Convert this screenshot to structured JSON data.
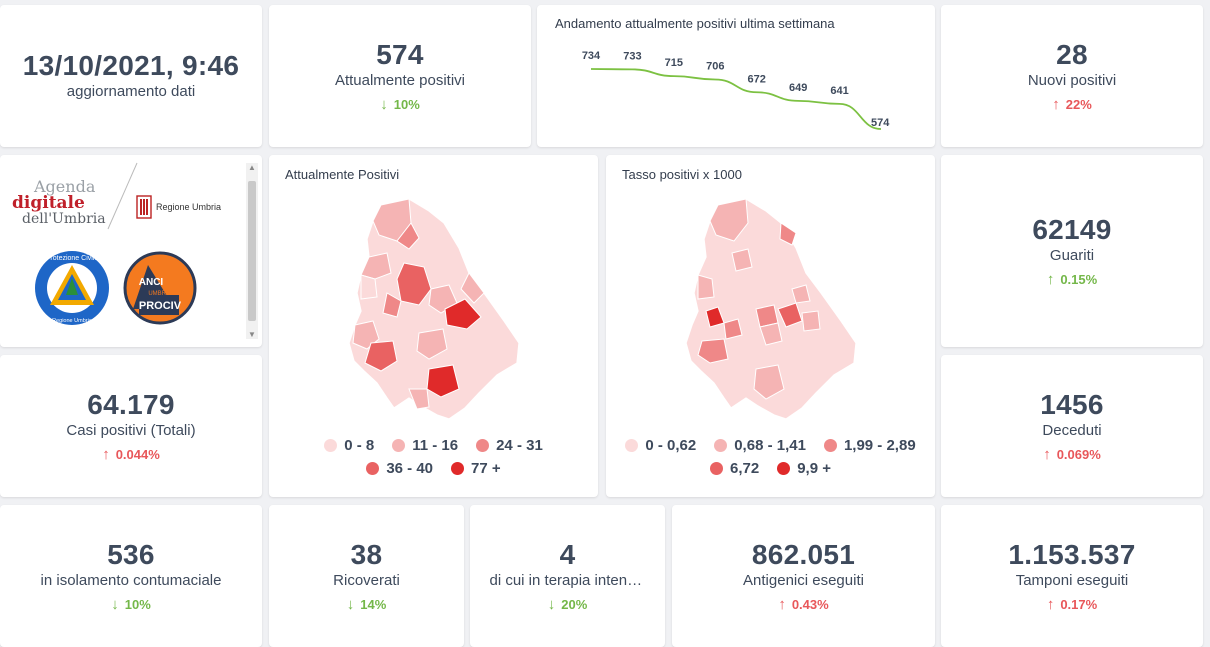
{
  "update": {
    "datetime": "13/10/2021, 9:46",
    "label": "aggiornamento dati"
  },
  "attualmente_positivi": {
    "value": "574",
    "label": "Attualmente positivi",
    "change": "10%",
    "direction": "down"
  },
  "trend": {
    "title": "Andamento attualmente positivi ultima settimana",
    "chart_data": {
      "type": "line",
      "x": [
        1,
        2,
        3,
        4,
        5,
        6,
        7,
        8
      ],
      "series": [
        {
          "values": [
            734,
            733,
            715,
            706,
            672,
            649,
            641,
            574
          ]
        }
      ],
      "data_labels": [
        "734",
        "733",
        "715",
        "706",
        "672",
        "649",
        "641",
        "574"
      ],
      "line_color": "#7cc142",
      "grid": false
    }
  },
  "nuovi_positivi": {
    "value": "28",
    "label": "Nuovi positivi",
    "change": "22%",
    "direction": "up"
  },
  "logos": {
    "agenda": [
      "Agenda",
      "digitale",
      "dell'Umbria"
    ],
    "regione": "Regione Umbria",
    "protezione": "Protezione Civile",
    "protezione_sub": "Regione Umbria",
    "anci": [
      "ANCI",
      "UMBRIA",
      "PROCIV"
    ]
  },
  "map_positivi": {
    "title": "Attualmente Positivi",
    "legend": [
      {
        "label": "0 - 8",
        "color": "#fbdada"
      },
      {
        "label": "11 - 16",
        "color": "#f5b4b4"
      },
      {
        "label": "24 - 31",
        "color": "#ef8888"
      },
      {
        "label": "36 - 40",
        "color": "#e96262"
      },
      {
        "label": "77 +",
        "color": "#e02a2a"
      }
    ]
  },
  "map_tasso": {
    "title": "Tasso positivi x 1000",
    "legend": [
      {
        "label": "0 - 0,62",
        "color": "#fbdada"
      },
      {
        "label": "0,68 - 1,41",
        "color": "#f5b4b4"
      },
      {
        "label": "1,99 - 2,89",
        "color": "#ef8888"
      },
      {
        "label": "6,72",
        "color": "#e96262"
      },
      {
        "label": "9,9 +",
        "color": "#e02a2a"
      }
    ]
  },
  "guariti": {
    "value": "62149",
    "label": "Guariti",
    "change": "0.15%",
    "direction": "up"
  },
  "casi_totali": {
    "value": "64.179",
    "label": "Casi positivi (Totali)",
    "change": "0.044%",
    "direction": "up"
  },
  "deceduti": {
    "value": "1456",
    "label": "Deceduti",
    "change": "0.069%",
    "direction": "up"
  },
  "isolamento": {
    "value": "536",
    "label": "in isolamento contumaciale",
    "change": "10%",
    "direction": "down"
  },
  "ricoverati": {
    "value": "38",
    "label": "Ricoverati",
    "change": "14%",
    "direction": "down"
  },
  "terapia": {
    "value": "4",
    "label": "di cui in terapia intensiva",
    "change": "20%",
    "direction": "down"
  },
  "antigenici": {
    "value": "862.051",
    "label": "Antigenici eseguiti",
    "change": "0.43%",
    "direction": "up"
  },
  "tamponi": {
    "value": "1.153.537",
    "label": "Tamponi eseguiti",
    "change": "0.17%",
    "direction": "up"
  },
  "arrows": {
    "up": "↑",
    "down": "↓"
  }
}
